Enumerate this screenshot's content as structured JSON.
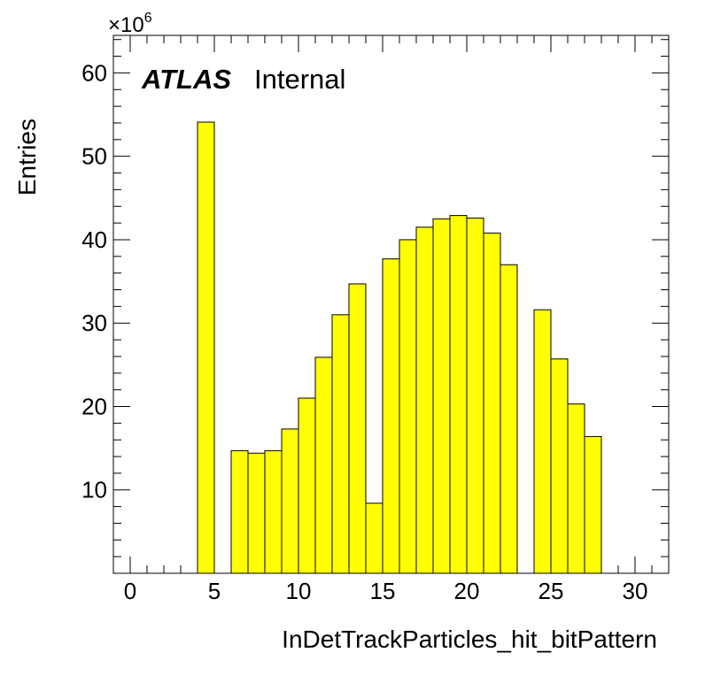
{
  "chart_data": {
    "type": "bar",
    "xlabel": "InDetTrackParticles_hit_bitPattern",
    "ylabel": "Entries",
    "y_multiplier_label": "×10",
    "y_multiplier_exponent": "6",
    "experiment_label": "ATLAS",
    "experiment_status": "Internal",
    "xlim": [
      -1,
      32
    ],
    "ylim": [
      0,
      64.5
    ],
    "x_ticks": [
      0,
      5,
      10,
      15,
      20,
      25,
      30
    ],
    "y_ticks": [
      10,
      20,
      30,
      40,
      50,
      60
    ],
    "bin_width": 1,
    "bin_low_edges": [
      -1,
      0,
      1,
      2,
      3,
      4,
      5,
      6,
      7,
      8,
      9,
      10,
      11,
      12,
      13,
      14,
      15,
      16,
      17,
      18,
      19,
      20,
      21,
      22,
      23,
      24,
      25,
      26,
      27,
      28,
      29,
      30,
      31
    ],
    "values": [
      0,
      0,
      0,
      0,
      0,
      54.1,
      0,
      14.7,
      14.4,
      14.7,
      17.3,
      21.0,
      25.9,
      31.0,
      34.7,
      8.4,
      37.7,
      40.0,
      41.5,
      42.5,
      42.9,
      42.6,
      40.8,
      37.0,
      0,
      31.6,
      25.7,
      20.3,
      16.4,
      0,
      0,
      0,
      0
    ],
    "fill_color": "#ffff00",
    "line_color": "#000000",
    "grid": false,
    "legend": "none"
  }
}
